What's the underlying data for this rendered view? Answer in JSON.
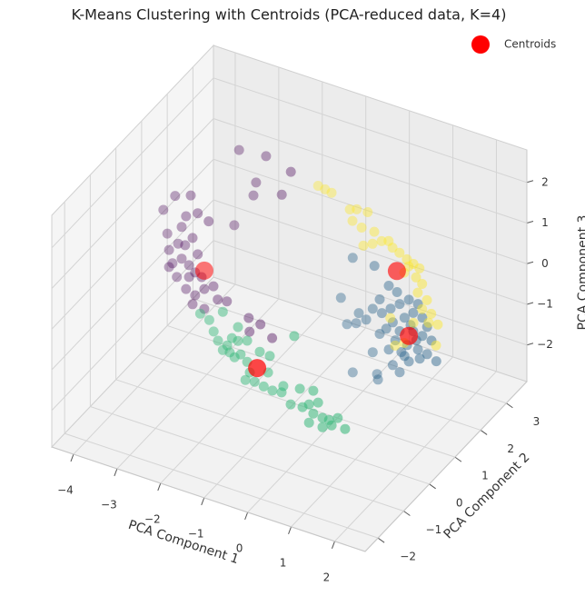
{
  "chart_data": {
    "type": "scatter3d",
    "title": "K-Means Clustering with Centroids (PCA-reduced data, K=4)",
    "xlabel": "PCA Component 1",
    "ylabel": "PCA Component 2",
    "zlabel": "PCA Component 3",
    "xlim": [
      -4.5,
      2.7
    ],
    "ylim": [
      -2.5,
      3.8
    ],
    "zlim": [
      -2.9,
      2.8
    ],
    "xticks": [
      {
        "value": -4,
        "label": "−4"
      },
      {
        "value": -3,
        "label": "−3"
      },
      {
        "value": -2,
        "label": "−2"
      },
      {
        "value": -1,
        "label": "−1"
      },
      0,
      1,
      2
    ],
    "yticks": [
      {
        "value": -2,
        "label": "−2"
      },
      {
        "value": -1,
        "label": "−1"
      },
      0,
      1,
      2,
      3
    ],
    "zticks": [
      {
        "value": -2,
        "label": "−2"
      },
      {
        "value": -1,
        "label": "−1"
      },
      0,
      1,
      2
    ],
    "grid": true,
    "legend": "upper right",
    "series": [
      {
        "color": "#440154",
        "alpha": 0.7,
        "size": 5.5,
        "x": [
          -2.85,
          -2.23,
          -1.66,
          -2.46,
          -1.87,
          -2.52,
          -2.96,
          -3.73,
          -3.37,
          -3.21,
          -3.48,
          -2.96,
          -4.0,
          -3.91,
          -3.66,
          -3.5,
          -3.33,
          -3.87,
          -3.58,
          -3.87,
          -3.41,
          -3.27,
          -3.69,
          -3.48,
          -3.27,
          -3.06,
          -2.85,
          -3.33,
          -3.06,
          -2.75,
          -2.54,
          -2.04,
          -1.77,
          -2.02,
          -1.5,
          -3.21,
          -3.79,
          -3.58,
          -3.41,
          -3.12
        ],
        "y": [
          2,
          2,
          2,
          2,
          2,
          2,
          2,
          1,
          1,
          1,
          1,
          1,
          1,
          1,
          1,
          1,
          1,
          1,
          1,
          1,
          1,
          1,
          1,
          1,
          1,
          1,
          1,
          1,
          1,
          1,
          1,
          1,
          1,
          1,
          1,
          1,
          1,
          1,
          1,
          1
        ],
        "z": [
          2.01,
          2.08,
          1.9,
          1.35,
          1.26,
          1.01,
          0.12,
          1.23,
          1.37,
          0.99,
          0.82,
          0.88,
          0.79,
          0.24,
          0.08,
          0.1,
          0.34,
          -0.15,
          -0.26,
          -0.57,
          -0.36,
          -0.49,
          -0.75,
          -0.97,
          -1.05,
          -0.82,
          -0.68,
          -1.29,
          -1.31,
          -0.97,
          -0.94,
          -1.17,
          -1.23,
          -1.5,
          -1.47,
          -0.02,
          -0.45,
          0.52,
          -0.65,
          -0.55
        ]
      },
      {
        "color": "#31688e",
        "alpha": 0.7,
        "size": 5.5,
        "x": [
          -0.24,
          0.26,
          -0.51,
          0.59,
          0.78,
          0.38,
          0.22,
          -0.1,
          -0.37,
          -0.16,
          0.07,
          0.43,
          0.63,
          0.84,
          1.05,
          1.26,
          0.68,
          0.95,
          1.15,
          1.36,
          1.47,
          0.84,
          1.15,
          1.36,
          1.57,
          0.74,
          1.01,
          1.26,
          1.47,
          1.68,
          1.3,
          0.95,
          0.68,
          0.84,
          0.32,
          0.22,
          0.38,
          -0.24,
          0.34,
          0.59,
          1.05,
          1.22,
          0.88,
          0.53,
          1.09
        ],
        "y": [
          2,
          2,
          2,
          2,
          2,
          2,
          2,
          2,
          2,
          2,
          2,
          2,
          2,
          2,
          2,
          2,
          2,
          2,
          2,
          2,
          2,
          2,
          2,
          2,
          2,
          2,
          2,
          2,
          2,
          2,
          2,
          2,
          2,
          2,
          2,
          2,
          2,
          2,
          2,
          2,
          2,
          2,
          2,
          2,
          2
        ],
        "z": [
          0.29,
          0.27,
          -0.79,
          -0.1,
          -0.19,
          -0.51,
          -0.8,
          -1.02,
          -1.39,
          -1.29,
          -1.12,
          -0.83,
          -0.65,
          -0.46,
          -0.28,
          -0.31,
          -0.97,
          -0.76,
          -0.57,
          -0.61,
          -0.8,
          -1.13,
          -1.02,
          -1.06,
          -1.1,
          -1.39,
          -1.41,
          -1.43,
          -1.47,
          -1.57,
          -1.64,
          -1.7,
          -2.02,
          -2.14,
          -2.37,
          -1.87,
          -1.36,
          -2.53,
          -2.5,
          -1.67,
          -1.8,
          -1.22,
          -1.63,
          -1.18,
          -0.89
        ]
      },
      {
        "color": "#35b779",
        "alpha": 0.7,
        "size": 5.5,
        "x": [
          -1.75,
          -2.06,
          -2.27,
          -1.96,
          -1.86,
          -1.65,
          -1.54,
          -1.4,
          -1.75,
          -1.34,
          -1.48,
          -1.19,
          -1.13,
          -1.23,
          -1.02,
          -0.71,
          -0.61,
          -0.4,
          -0.19,
          -0.36,
          0.08,
          0.23,
          0.44,
          0.33,
          0.54,
          0.69,
          0.89,
          1.06,
          0.75,
          0.33,
          -0.67,
          -0.9,
          -0.11,
          -1.19,
          -1.4,
          -1.59,
          -0.81,
          0.02,
          0.23,
          0.54
        ],
        "y": [
          -0.5,
          -0.5,
          -0.5,
          -0.5,
          -0.5,
          -0.5,
          -0.5,
          -0.5,
          -0.5,
          -0.5,
          -0.5,
          -0.5,
          -0.5,
          -0.5,
          -0.5,
          -0.5,
          -0.5,
          -0.5,
          -0.5,
          -0.5,
          -0.5,
          -0.5,
          -0.5,
          -0.5,
          -0.5,
          -0.5,
          -0.5,
          -0.5,
          -0.5,
          -0.5,
          -0.5,
          -0.5,
          -0.5,
          -0.5,
          -0.5,
          -0.5,
          -0.5,
          -0.5,
          -0.5,
          -0.5
        ],
        "z": [
          0.08,
          -0.23,
          -0.15,
          -0.48,
          -0.67,
          -0.71,
          -0.49,
          -0.51,
          -0.86,
          -0.82,
          -0.94,
          -0.95,
          -1.19,
          -1.41,
          -1.38,
          -1.04,
          -1.45,
          -1.42,
          -1.64,
          -1.25,
          -1.61,
          -1.49,
          -1.37,
          -1.68,
          -1.71,
          -1.71,
          -1.59,
          -1.8,
          -1.82,
          -1.12,
          -0.62,
          -0.6,
          0.07,
          -0.43,
          -0.17,
          -0.86,
          -1.42,
          -1.18,
          -1.94,
          -1.94
        ]
      },
      {
        "color": "#fde725",
        "alpha": 0.7,
        "size": 5.5,
        "x": [
          -1.33,
          -1.17,
          -1.02,
          -0.6,
          -0.44,
          -0.19,
          -0.54,
          -0.33,
          -0.04,
          -0.29,
          -0.08,
          0.13,
          0.38,
          0.54,
          0.71,
          0.86,
          0.65,
          0.92,
          1.06,
          0.96,
          1.17,
          1.06,
          1.27,
          1.21,
          1.42,
          0.86,
          0.33,
          0.44,
          0.65,
          1.38,
          0.29,
          0.75,
          1.0
        ],
        "y": [
          2.5,
          2.5,
          2.5,
          2.5,
          2.5,
          2.5,
          2.5,
          2.5,
          2.5,
          2.5,
          2.5,
          2.5,
          2.5,
          2.5,
          2.5,
          2.5,
          2.5,
          2.5,
          2.5,
          2.5,
          2.5,
          2.5,
          2.5,
          2.5,
          2.5,
          2.5,
          2.5,
          2.5,
          2.5,
          2.5,
          2.5,
          2.5,
          2.5
        ],
        "z": [
          1.34,
          1.31,
          1.28,
          1.02,
          1.08,
          1.1,
          0.76,
          0.67,
          0.67,
          0.24,
          0.36,
          0.5,
          0.43,
          0.36,
          0.26,
          0.2,
          -0.09,
          -0.11,
          -0.22,
          -0.47,
          -0.58,
          -0.84,
          -0.88,
          -1.12,
          -1.09,
          -1.25,
          -1.32,
          -1.96,
          -1.82,
          -1.62,
          0.56,
          0.1,
          0.14
        ]
      },
      {
        "name": "Centroids",
        "color": "#ff0000",
        "alpha": 1,
        "size": 10,
        "x": [
          -3.06,
          1.05,
          -0.96,
          0.48
        ],
        "y": [
          1,
          2,
          -0.5,
          2.5
        ],
        "z": [
          -0.37,
          -1.17,
          -1.02,
          -0.11
        ]
      }
    ]
  }
}
